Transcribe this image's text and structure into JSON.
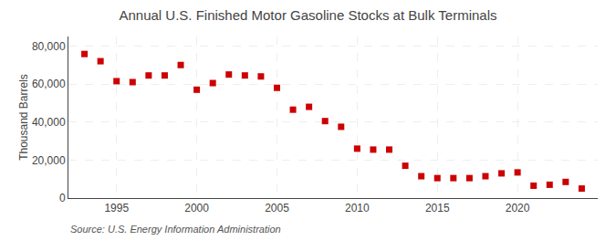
{
  "chart_data": {
    "type": "scatter",
    "title": "Annual U.S. Finished Motor Gasoline Stocks at Bulk Terminals",
    "ylabel": "Thousand Barrels",
    "annotation": "Source: U.S. Energy Information Administration",
    "x": [
      1993,
      1994,
      1995,
      1996,
      1997,
      1998,
      1999,
      2000,
      2001,
      2002,
      2003,
      2004,
      2005,
      2006,
      2007,
      2008,
      2009,
      2010,
      2011,
      2012,
      2013,
      2014,
      2015,
      2016,
      2017,
      2018,
      2019,
      2020,
      2021,
      2022,
      2023,
      2024
    ],
    "values": [
      75800,
      72000,
      61500,
      61000,
      64500,
      64500,
      70000,
      57000,
      60500,
      65000,
      64500,
      64000,
      58000,
      46500,
      48000,
      40500,
      37500,
      26000,
      25500,
      25500,
      17000,
      11500,
      10500,
      10500,
      10500,
      11500,
      13000,
      13500,
      6500,
      7000,
      8500,
      5000
    ],
    "color": "#cc0000",
    "marker": "square",
    "xlim": [
      1992,
      2025
    ],
    "xticks": [
      1995,
      2000,
      2005,
      2010,
      2015,
      2020
    ],
    "ylim": [
      0,
      85000
    ],
    "yticks": [
      0,
      {
        "value": 20000,
        "label": "20,000"
      },
      {
        "value": 40000,
        "label": "40,000"
      },
      {
        "value": 60000,
        "label": "60,000"
      },
      {
        "value": 80000,
        "label": "80,000"
      }
    ],
    "grid": true
  }
}
